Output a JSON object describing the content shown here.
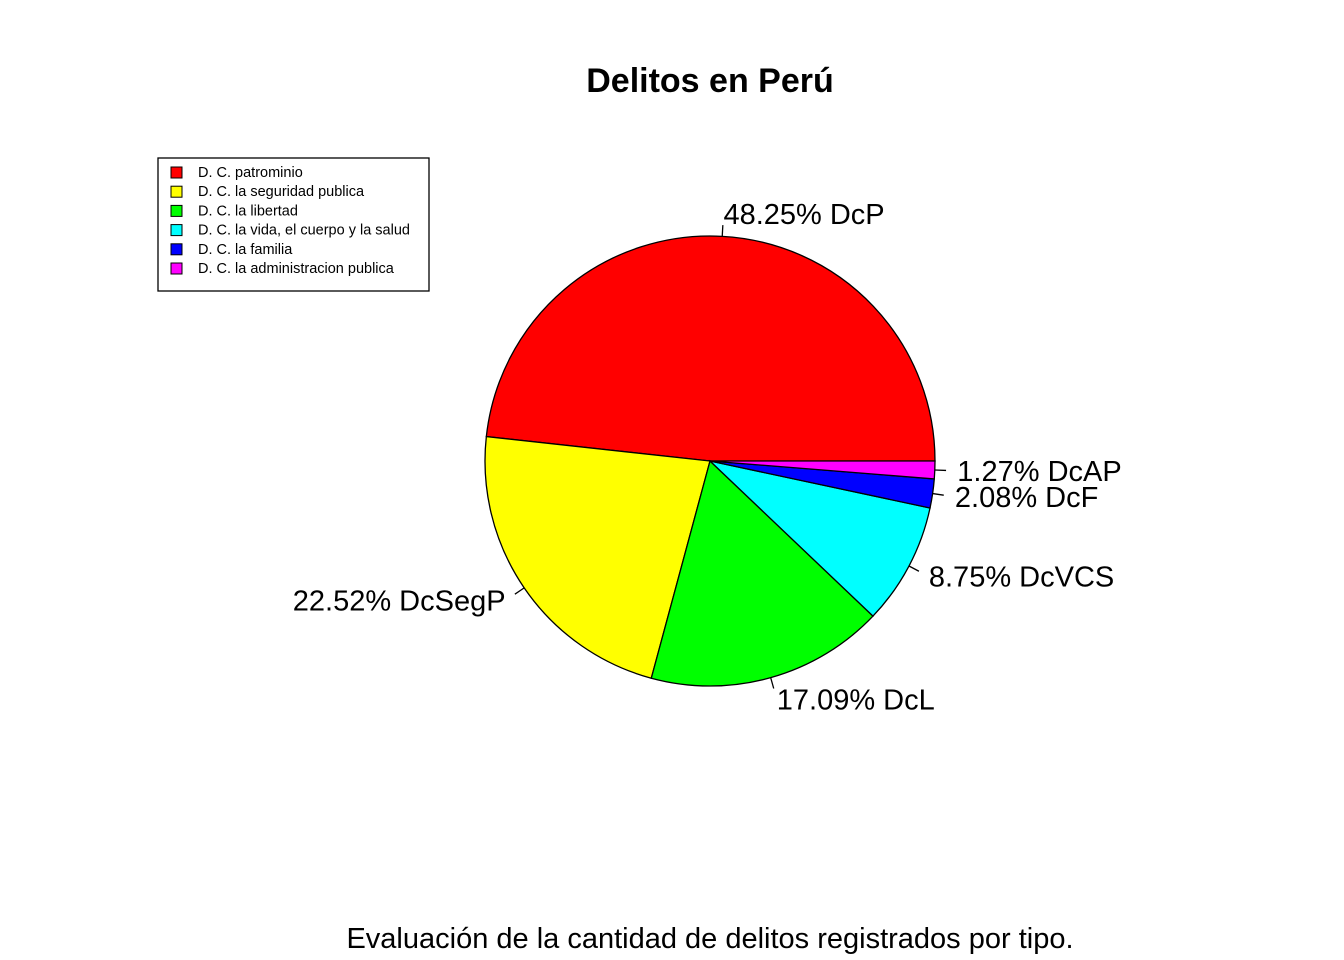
{
  "chart_data": {
    "type": "pie",
    "title": "Delitos en Perú",
    "xlabel": "Evaluación de la cantidad de delitos registrados por tipo.",
    "slices": [
      {
        "label": "48.25% DcP",
        "legend": "D. C. patrominio",
        "value": 48.25,
        "color": "#FF0000"
      },
      {
        "label": "22.52% DcSegP",
        "legend": "D. C. la seguridad publica",
        "value": 22.52,
        "color": "#FFFF00"
      },
      {
        "label": "17.09% DcL",
        "legend": "D. C. la libertad",
        "value": 17.09,
        "color": "#00FF00"
      },
      {
        "label": "8.75% DcVCS",
        "legend": "D. C. la vida, el cuerpo y la salud",
        "value": 8.75,
        "color": "#00FFFF"
      },
      {
        "label": "2.08% DcF",
        "legend": "D. C. la familia",
        "value": 2.08,
        "color": "#0000FF"
      },
      {
        "label": "1.27% DcAP",
        "legend": "D. C. la administracion publica",
        "value": 1.27,
        "color": "#FF00FF"
      }
    ],
    "direction": "counterclockwise",
    "start_angle_deg": 0,
    "legend_position": "top-left"
  }
}
